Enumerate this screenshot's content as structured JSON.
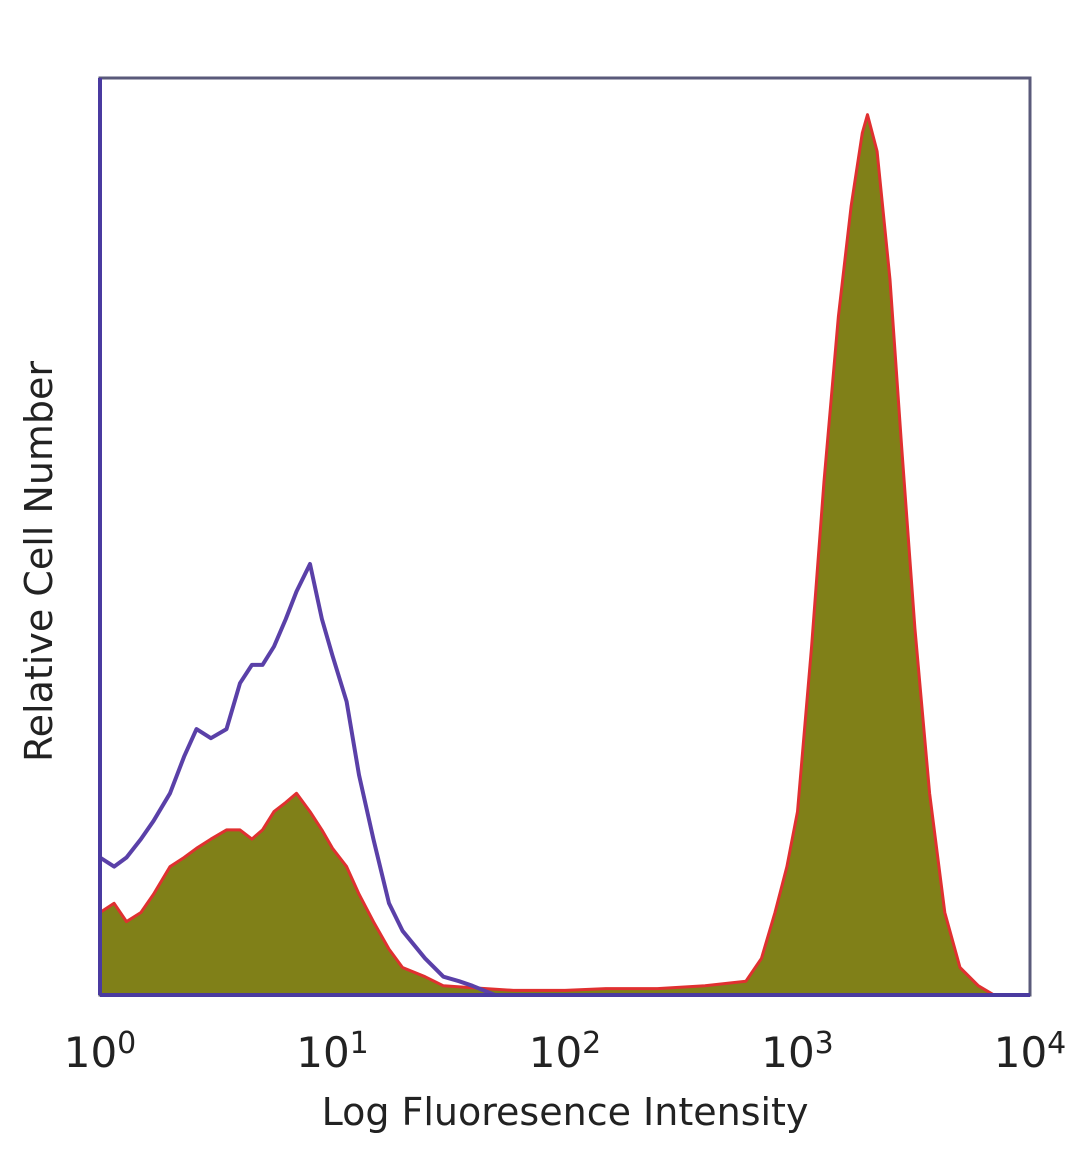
{
  "chart_data": {
    "type": "area",
    "title": "",
    "xlabel": "Log Fluoresence Intensity",
    "ylabel": "Relative Cell Number",
    "x_scale": "log",
    "xlim": [
      1,
      10000
    ],
    "ylim": [
      0,
      100
    ],
    "grid": false,
    "legend": "none",
    "x_ticks": [
      {
        "value": 1,
        "base": "10",
        "exp": "0"
      },
      {
        "value": 10,
        "base": "10",
        "exp": "1"
      },
      {
        "value": 100,
        "base": "10",
        "exp": "2"
      },
      {
        "value": 1000,
        "base": "10",
        "exp": "3"
      },
      {
        "value": 10000,
        "base": "10",
        "exp": "4"
      }
    ],
    "series": [
      {
        "style": "filled",
        "color": "#808018",
        "edge_color": "#e03030",
        "x": [
          1,
          1.15,
          1.3,
          1.5,
          1.7,
          2.0,
          2.3,
          2.6,
          3.0,
          3.5,
          4.0,
          4.5,
          5.0,
          5.6,
          6.3,
          7.0,
          8.0,
          9.0,
          10,
          11.5,
          13,
          15,
          17.5,
          20,
          25,
          30,
          40,
          60,
          100,
          150,
          250,
          400,
          600,
          700,
          800,
          900,
          1000,
          1150,
          1300,
          1500,
          1700,
          1900,
          2000,
          2200,
          2500,
          2800,
          3200,
          3700,
          4300,
          5000,
          6000,
          7000
        ],
        "y": [
          9,
          10,
          8,
          9,
          11,
          14,
          15,
          16,
          17,
          18,
          18,
          17,
          18,
          20,
          21,
          22,
          20,
          18,
          16,
          14,
          11,
          8,
          5,
          3,
          2,
          1,
          0.8,
          0.5,
          0.5,
          0.7,
          0.7,
          1.0,
          1.5,
          4,
          9,
          14,
          20,
          38,
          56,
          74,
          86,
          94,
          96,
          92,
          78,
          60,
          40,
          22,
          9,
          3,
          1,
          0
        ]
      },
      {
        "style": "outline",
        "color": "#5a40a8",
        "x": [
          1,
          1.15,
          1.3,
          1.5,
          1.7,
          2.0,
          2.3,
          2.6,
          3.0,
          3.5,
          4.0,
          4.5,
          5.0,
          5.6,
          6.3,
          7.0,
          8.0,
          9.0,
          10,
          11.5,
          13,
          15,
          17.5,
          20,
          25,
          30,
          35,
          40,
          50
        ],
        "y": [
          15,
          14,
          15,
          17,
          19,
          22,
          26,
          29,
          28,
          29,
          34,
          36,
          36,
          38,
          41,
          44,
          47,
          41,
          37,
          32,
          24,
          17,
          10,
          7,
          4,
          2,
          1.5,
          1,
          0
        ]
      }
    ]
  }
}
